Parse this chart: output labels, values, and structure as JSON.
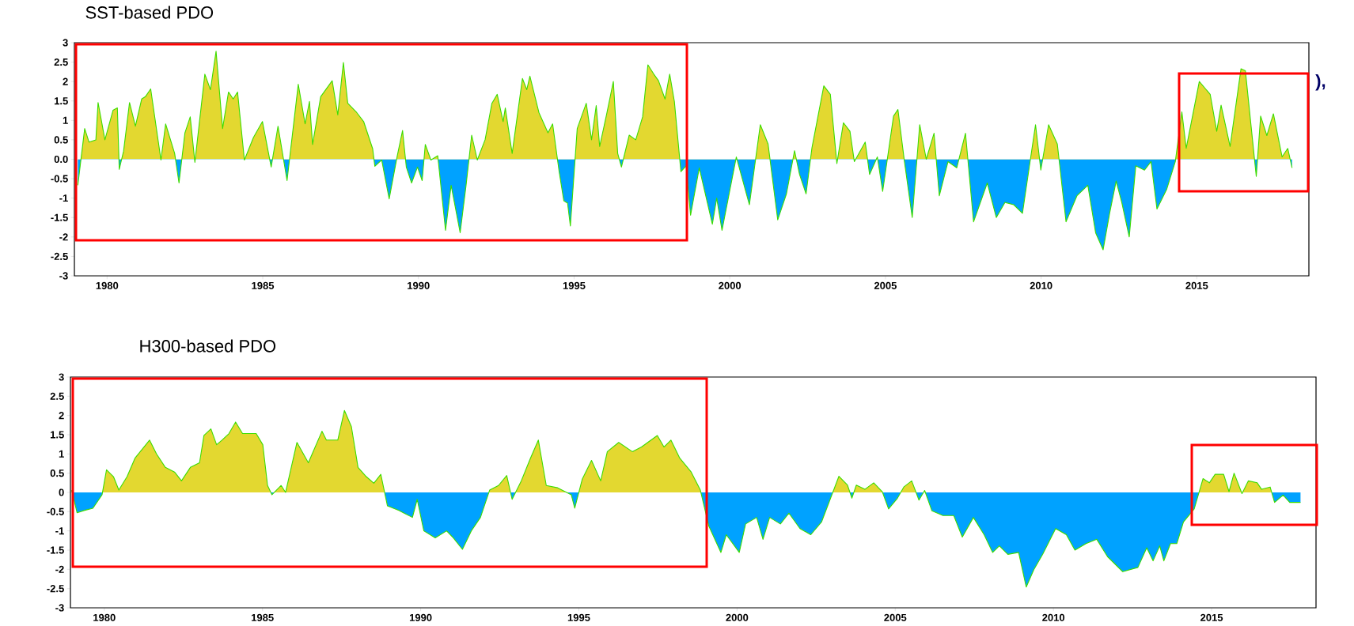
{
  "chart_data": [
    {
      "type": "area",
      "title": "SST-based PDO",
      "xlim": [
        1978.95,
        2018.6
      ],
      "ylim": [
        -3,
        3
      ],
      "xticks": [
        1980,
        1985,
        1990,
        1995,
        2000,
        2005,
        2010,
        2015
      ],
      "yticks": [
        -3,
        -2.5,
        -2,
        -1.5,
        -1,
        -0.5,
        {
          "value": 0,
          "label": "0.0"
        },
        0.5,
        1,
        1.5,
        2,
        2.5,
        3
      ],
      "grid": false,
      "annotations": [
        "),"
      ],
      "series": [
        {
          "color": "#3cdc00",
          "colors": [
            "#00a2ff",
            "#e3d830",
            "#e3d830",
            "#e3d830",
            "#e3d830",
            "#e3d830",
            "#e3d830",
            "#e3d830",
            "#00a2ff",
            "#e3d830",
            "#e3d830",
            "#e3d830",
            "#e3d830",
            "#e3d830",
            "#e3d830",
            "#00a2ff",
            "#e3d830",
            "#e3d830",
            "#00a2ff",
            "#e3d830",
            "#e3d830",
            "#00a2ff",
            "#e3d830",
            "#e3d830",
            "#e3d830",
            "#e3d830",
            "#e3d830",
            "#e3d830",
            "#e3d830",
            "#00a2ff",
            "#e3d830",
            "#e3d830",
            "#00a2ff",
            "#e3d830",
            "#00a2ff",
            "#e3d830",
            "#e3d830",
            "#e3d830",
            "#e3d830",
            "#e3d830",
            "#e3d830",
            "#e3d830",
            "#e3d830",
            "#e3d830",
            "#e3d830",
            "#e3d830",
            "#e3d830",
            "#00a2ff",
            "#00a2ff",
            "#00a2ff",
            "#e3d830",
            "#e3d830",
            "#00a2ff",
            "#00a2ff",
            "#00a2ff",
            "#00a2ff",
            "#e3d830",
            "#00a2ff",
            "#e3d830",
            "#00a2ff",
            "#00a2ff",
            "#00a2ff",
            "#00a2ff",
            "#e3d830",
            "#00a2ff",
            "#e3d830",
            "#e3d830",
            "#e3d830",
            "#e3d830",
            "#e3d830",
            "#e3d830",
            "#e3d830",
            "#e3d830",
            "#e3d830",
            "#e3d830",
            "#e3d830",
            "#e3d830",
            "#00a2ff",
            "#00a2ff",
            "#00a2ff",
            "#00a2ff",
            "#e3d830",
            "#e3d830",
            "#e3d830",
            "#e3d830",
            "#e3d830",
            "#e3d830",
            "#e3d830",
            "#e3d830",
            "#00a2ff",
            "#e3d830",
            "#e3d830",
            "#e3d830",
            "#e3d830",
            "#e3d830",
            "#e3d830",
            "#e3d830",
            "#e3d830",
            "#e3d830",
            "#00a2ff",
            "#00a2ff",
            "#00a2ff",
            "#00a2ff",
            "#00a2ff",
            "#00a2ff",
            "#00a2ff",
            "#e3d830",
            "#00a2ff",
            "#e3d830",
            "#e3d830",
            "#00a2ff",
            "#00a2ff",
            "#e3d830",
            "#00a2ff",
            "#00a2ff",
            "#e3d830",
            "#e3d830",
            "#e3d830",
            "#00a2ff",
            "#e3d830",
            "#e3d830",
            "#00a2ff",
            "#e3d830",
            "#00a2ff",
            "#e3d830",
            "#00a2ff",
            "#e3d830",
            "#e3d830",
            "#00a2ff",
            "#00a2ff",
            "#e3d830",
            "#e3d830",
            "#e3d830",
            "#00a2ff",
            "#00a2ff",
            "#00a2ff",
            "#e3d830",
            "#00a2ff",
            "#00a2ff",
            "#00a2ff",
            "#00a2ff",
            "#00a2ff",
            "#00a2ff",
            "#e3d830",
            "#00a2ff",
            "#e3d830",
            "#e3d830",
            "#00a2ff",
            "#00a2ff",
            "#00a2ff",
            "#00a2ff",
            "#00a2ff",
            "#00a2ff",
            "#00a2ff",
            "#00a2ff",
            "#00a2ff",
            "#00a2ff",
            "#00a2ff",
            "#00a2ff",
            "#00a2ff",
            "#00a2ff",
            "#00a2ff",
            "#e3d830",
            "#e3d830",
            "#e3d830",
            "#e3d830",
            "#e3d830",
            "#e3d830",
            "#e3d830",
            "#e3d830",
            "#e3d830",
            "#00a2ff",
            "#e3d830",
            "#e3d830",
            "#e3d830",
            "#e3d830",
            "#e3d830",
            "#00a2ff"
          ],
          "x": [
            1979.06,
            1979.28,
            1979.42,
            1979.64,
            1979.71,
            1979.93,
            1980.19,
            1980.33,
            1980.39,
            1980.53,
            1980.72,
            1980.91,
            1981.11,
            1981.23,
            1981.4,
            1981.73,
            1981.88,
            1982.17,
            1982.31,
            1982.5,
            1982.67,
            1982.82,
            1983.14,
            1983.32,
            1983.5,
            1983.71,
            1983.9,
            1984.05,
            1984.19,
            1984.41,
            1984.7,
            1984.99,
            1985.27,
            1985.49,
            1985.78,
            1986.14,
            1986.36,
            1986.5,
            1986.6,
            1986.86,
            1987.23,
            1987.41,
            1987.59,
            1987.73,
            1988.02,
            1988.24,
            1988.53,
            1988.6,
            1988.82,
            1989.06,
            1989.32,
            1989.49,
            1989.61,
            1989.78,
            1989.97,
            1990.12,
            1990.22,
            1990.4,
            1990.62,
            1990.87,
            1991.05,
            1991.34,
            1991.53,
            1991.71,
            1991.89,
            1992.14,
            1992.36,
            1992.53,
            1992.72,
            1992.79,
            1993.01,
            1993.34,
            1993.48,
            1993.58,
            1993.87,
            1994.16,
            1994.31,
            1994.52,
            1994.67,
            1994.79,
            1994.88,
            1995.1,
            1995.39,
            1995.56,
            1995.71,
            1995.82,
            1996.04,
            1996.26,
            1996.4,
            1996.52,
            1996.77,
            1996.98,
            1997.2,
            1997.37,
            1997.56,
            1997.71,
            1997.92,
            1998.07,
            1998.22,
            1998.43,
            1998.6,
            1998.74,
            1999.02,
            1999.44,
            1999.58,
            1999.75,
            2000.21,
            2000.63,
            2000.98,
            2001.23,
            2001.54,
            2001.82,
            2002.08,
            2002.24,
            2002.45,
            2002.64,
            2003.02,
            2003.23,
            2003.44,
            2003.65,
            2003.86,
            2004.0,
            2004.35,
            2004.49,
            2004.74,
            2004.91,
            2005.26,
            2005.4,
            2005.61,
            2005.86,
            2006.1,
            2006.31,
            2006.56,
            2006.73,
            2007.01,
            2007.29,
            2007.57,
            2007.83,
            2008.27,
            2008.56,
            2008.84,
            2009.12,
            2009.4,
            2009.82,
            2009.99,
            2010.24,
            2010.52,
            2010.8,
            2011.15,
            2011.5,
            2011.75,
            2011.99,
            2012.2,
            2012.41,
            2012.59,
            2012.83,
            2013.04,
            2013.32,
            2013.53,
            2013.72,
            2014.03,
            2014.31,
            2014.52,
            2014.66,
            2015.08,
            2015.43,
            2015.64,
            2015.78,
            2016.07,
            2016.42,
            2016.56,
            2016.91,
            2017.05,
            2017.25,
            2017.46,
            2017.74,
            2017.92,
            2018.06
          ],
          "values": [
            -0.67,
            0.79,
            0.44,
            0.5,
            1.46,
            0.5,
            1.26,
            1.32,
            -0.26,
            0.21,
            1.46,
            0.85,
            1.55,
            1.61,
            1.81,
            -0.02,
            0.91,
            0.15,
            -0.61,
            0.68,
            1.09,
            -0.08,
            2.19,
            1.79,
            2.78,
            0.79,
            1.73,
            1.55,
            1.73,
            -0.02,
            0.56,
            0.97,
            -0.2,
            0.85,
            -0.55,
            1.93,
            0.91,
            1.49,
            0.38,
            1.61,
            2.02,
            1.14,
            2.49,
            1.44,
            1.2,
            0.97,
            0.27,
            -0.18,
            -0.02,
            -1.02,
            0.09,
            0.74,
            -0.2,
            -0.61,
            -0.2,
            -0.55,
            0.38,
            -0.02,
            0.09,
            -1.83,
            -0.67,
            -1.89,
            -0.67,
            0.62,
            -0.02,
            0.5,
            1.44,
            1.67,
            0.97,
            1.32,
            0.15,
            2.08,
            1.79,
            2.14,
            1.2,
            0.68,
            0.91,
            -0.32,
            -1.07,
            -1.13,
            -1.72,
            0.79,
            1.44,
            0.5,
            1.38,
            0.33,
            1.14,
            2.0,
            0.15,
            -0.2,
            0.62,
            0.5,
            1.09,
            2.43,
            2.19,
            2.02,
            1.55,
            2.19,
            1.49,
            -0.32,
            -0.17,
            -1.44,
            -0.22,
            -1.67,
            -1.0,
            -1.83,
            0.06,
            -1.17,
            0.89,
            0.39,
            -1.56,
            -0.89,
            0.22,
            -0.39,
            -0.89,
            0.3,
            1.89,
            1.67,
            -0.11,
            0.94,
            0.72,
            -0.06,
            0.44,
            -0.39,
            0.06,
            -0.83,
            1.11,
            1.28,
            -0.06,
            -1.5,
            0.89,
            0.0,
            0.67,
            -0.94,
            -0.06,
            -0.22,
            0.67,
            -1.61,
            -0.61,
            -1.5,
            -1.11,
            -1.17,
            -1.39,
            0.89,
            -0.28,
            0.89,
            0.39,
            -1.61,
            -0.94,
            -0.67,
            -1.89,
            -2.33,
            -1.39,
            -0.56,
            -1.11,
            -2.0,
            -0.17,
            -0.28,
            -0.06,
            -1.28,
            -0.78,
            -0.06,
            1.22,
            0.28,
            2.0,
            1.67,
            0.72,
            1.39,
            0.33,
            2.33,
            2.28,
            -0.44,
            1.11,
            0.61,
            1.17,
            0.06,
            0.28,
            -0.22
          ]
        }
      ]
    },
    {
      "type": "area",
      "title": "H300-based PDO",
      "xlim": [
        1978.93,
        2018.3
      ],
      "ylim": [
        -3,
        3
      ],
      "xticks": [
        1980,
        1985,
        1990,
        1995,
        2000,
        2005,
        2010,
        2015
      ],
      "yticks": [
        -3,
        -2.5,
        -2,
        -1.5,
        -1,
        -0.5,
        0,
        0.5,
        1,
        1.5,
        2,
        2.5,
        3
      ],
      "grid": false,
      "series": [
        {
          "color": "#3cdc00",
          "colors": [
            "#e3d830",
            "#00a2ff",
            "#00a2ff",
            "#00a2ff",
            "#00a2ff",
            "#e3d830",
            "#e3d830",
            "#e3d830",
            "#e3d830",
            "#e3d830",
            "#e3d830",
            "#e3d830",
            "#e3d830",
            "#e3d830",
            "#e3d830",
            "#e3d830",
            "#e3d830",
            "#e3d830",
            "#e3d830",
            "#e3d830",
            "#e3d830",
            "#e3d830",
            "#e3d830",
            "#e3d830",
            "#e3d830",
            "#e3d830",
            "#e3d830",
            "#00a2ff",
            "#e3d830",
            "#e3d830",
            "#e3d830",
            "#e3d830",
            "#e3d830",
            "#e3d830",
            "#e3d830",
            "#e3d830",
            "#e3d830",
            "#e3d830",
            "#e3d830",
            "#e3d830",
            "#e3d830",
            "#00a2ff",
            "#00a2ff",
            "#00a2ff",
            "#00a2ff",
            "#00a2ff",
            "#00a2ff",
            "#00a2ff",
            "#00a2ff",
            "#00a2ff",
            "#00a2ff",
            "#00a2ff",
            "#e3d830",
            "#e3d830",
            "#e3d830",
            "#00a2ff",
            "#e3d830",
            "#e3d830",
            "#e3d830",
            "#e3d830",
            "#e3d830",
            "#00a2ff",
            "#00a2ff",
            "#e3d830",
            "#e3d830",
            "#e3d830",
            "#e3d830",
            "#e3d830",
            "#e3d830",
            "#e3d830",
            "#e3d830",
            "#e3d830",
            "#e3d830",
            "#e3d830",
            "#e3d830",
            "#e3d830",
            "#00a2ff",
            "#00a2ff",
            "#00a2ff",
            "#00a2ff",
            "#00a2ff",
            "#00a2ff",
            "#00a2ff",
            "#00a2ff",
            "#00a2ff",
            "#00a2ff",
            "#00a2ff",
            "#00a2ff",
            "#00a2ff",
            "#e3d830",
            "#e3d830",
            "#00a2ff",
            "#e3d830",
            "#e3d830",
            "#e3d830",
            "#e3d830",
            "#00a2ff",
            "#00a2ff",
            "#e3d830",
            "#e3d830",
            "#00a2ff",
            "#e3d830",
            "#00a2ff",
            "#00a2ff",
            "#00a2ff",
            "#00a2ff",
            "#00a2ff",
            "#00a2ff",
            "#00a2ff",
            "#00a2ff",
            "#00a2ff",
            "#00a2ff",
            "#00a2ff",
            "#00a2ff",
            "#00a2ff",
            "#00a2ff",
            "#00a2ff",
            "#00a2ff",
            "#00a2ff",
            "#00a2ff",
            "#00a2ff",
            "#00a2ff",
            "#00a2ff",
            "#00a2ff",
            "#00a2ff",
            "#00a2ff",
            "#00a2ff",
            "#00a2ff",
            "#00a2ff",
            "#00a2ff",
            "#00a2ff",
            "#e3d830",
            "#e3d830",
            "#e3d830",
            "#e3d830",
            "#e3d830",
            "#e3d830",
            "#00a2ff",
            "#e3d830",
            "#e3d830",
            "#e3d830",
            "#e3d830",
            "#00a2ff",
            "#00a2ff",
            "#00a2ff",
            "#00a2ff"
          ],
          "x": [
            1978.97,
            1979.14,
            1979.36,
            1979.64,
            1979.93,
            1980.07,
            1980.29,
            1980.46,
            1980.72,
            1980.97,
            1981.43,
            1981.65,
            1981.93,
            1982.22,
            1982.44,
            1982.72,
            1983.01,
            1983.15,
            1983.37,
            1983.55,
            1983.72,
            1983.94,
            1984.15,
            1984.37,
            1984.8,
            1985.01,
            1985.16,
            1985.3,
            1985.59,
            1985.73,
            1986.09,
            1986.45,
            1986.88,
            1987.02,
            1987.38,
            1987.59,
            1987.81,
            1988.02,
            1988.28,
            1988.52,
            1988.74,
            1988.95,
            1989.31,
            1989.74,
            1989.89,
            1990.1,
            1990.46,
            1990.82,
            1991.03,
            1991.32,
            1991.6,
            1991.89,
            1992.18,
            1992.46,
            1992.72,
            1992.89,
            1993.18,
            1993.47,
            1993.72,
            1993.97,
            1994.33,
            1994.76,
            1994.87,
            1995.11,
            1995.4,
            1995.69,
            1995.9,
            1996.26,
            1996.69,
            1996.98,
            1997.48,
            1997.69,
            1997.91,
            1998.19,
            1998.55,
            1998.84,
            1999.11,
            1999.49,
            1999.66,
            2000.07,
            2000.27,
            2000.62,
            2000.82,
            2001.03,
            2001.37,
            2001.64,
            2001.99,
            2002.33,
            2002.67,
            2003.22,
            2003.49,
            2003.63,
            2003.77,
            2004.04,
            2004.32,
            2004.59,
            2004.79,
            2005.07,
            2005.27,
            2005.52,
            2005.75,
            2005.93,
            2006.16,
            2006.51,
            2006.85,
            2007.12,
            2007.47,
            2007.81,
            2008.08,
            2008.29,
            2008.56,
            2008.9,
            2009.14,
            2009.38,
            2009.66,
            2010.07,
            2010.41,
            2010.68,
            2011.03,
            2011.37,
            2011.71,
            2012.19,
            2012.67,
            2012.95,
            2013.15,
            2013.36,
            2013.49,
            2013.7,
            2013.9,
            2014.11,
            2014.45,
            2014.73,
            2014.93,
            2015.11,
            2015.38,
            2015.55,
            2015.71,
            2015.96,
            2016.16,
            2016.44,
            2016.58,
            2016.85,
            2016.99,
            2017.26,
            2017.47,
            2017.81
          ],
          "values": [
            0.06,
            -0.53,
            -0.47,
            -0.41,
            -0.06,
            0.59,
            0.41,
            0.06,
            0.41,
            0.89,
            1.36,
            1.0,
            0.65,
            0.53,
            0.3,
            0.65,
            0.77,
            1.48,
            1.65,
            1.24,
            1.36,
            1.53,
            1.83,
            1.53,
            1.53,
            1.24,
            0.18,
            -0.06,
            0.18,
            0.0,
            1.3,
            0.77,
            1.59,
            1.36,
            1.36,
            2.13,
            1.71,
            0.65,
            0.41,
            0.24,
            0.47,
            -0.35,
            -0.47,
            -0.65,
            -0.18,
            -1.0,
            -1.18,
            -1.0,
            -1.18,
            -1.48,
            -1.0,
            -0.65,
            0.06,
            0.18,
            0.44,
            -0.18,
            0.3,
            0.89,
            1.36,
            0.18,
            0.12,
            -0.06,
            -0.41,
            0.35,
            0.83,
            0.3,
            1.06,
            1.3,
            1.06,
            1.18,
            1.48,
            1.18,
            1.36,
            0.89,
            0.53,
            0.06,
            -0.88,
            -1.56,
            -1.1,
            -1.56,
            -0.82,
            -0.65,
            -1.22,
            -0.65,
            -0.82,
            -0.54,
            -0.94,
            -1.1,
            -0.77,
            0.42,
            0.19,
            -0.15,
            0.19,
            0.08,
            0.25,
            0.02,
            -0.43,
            -0.15,
            0.14,
            0.3,
            -0.2,
            0.05,
            -0.48,
            -0.6,
            -0.6,
            -1.16,
            -0.65,
            -1.1,
            -1.56,
            -1.39,
            -1.61,
            -1.56,
            -2.46,
            -2.01,
            -1.61,
            -0.94,
            -1.1,
            -1.5,
            -1.33,
            -1.22,
            -1.67,
            -2.06,
            -1.95,
            -1.44,
            -1.78,
            -1.39,
            -1.78,
            -1.33,
            -1.33,
            -0.77,
            -0.43,
            0.36,
            0.25,
            0.47,
            0.47,
            0.02,
            0.5,
            -0.03,
            0.3,
            0.25,
            0.08,
            0.14,
            -0.26,
            -0.07,
            -0.26,
            -0.26
          ]
        }
      ]
    }
  ]
}
